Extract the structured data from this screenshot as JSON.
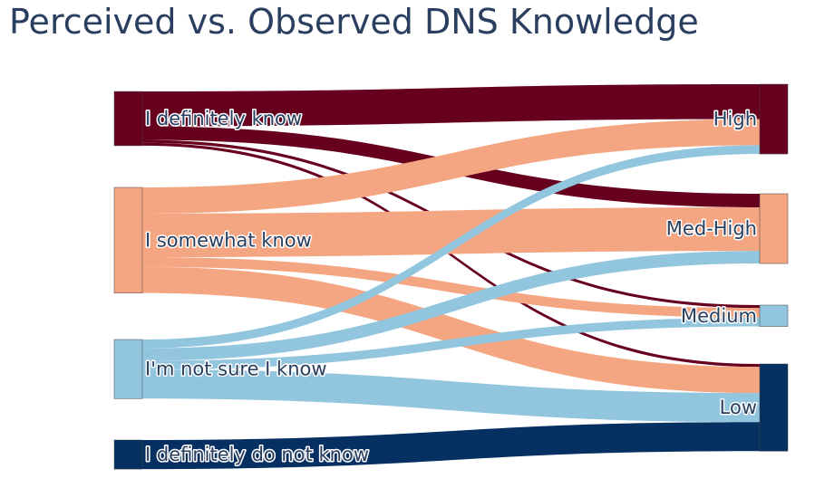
{
  "title": "Perceived vs. Observed DNS Knowledge",
  "chart_data": {
    "type": "sankey",
    "title": "Perceived vs. Observed DNS Knowledge",
    "nodes": [
      {
        "id": "s0",
        "label": "I definitely know",
        "color": "#67001f",
        "side": "source"
      },
      {
        "id": "s1",
        "label": "I somewhat know",
        "color": "#f4a582",
        "side": "source"
      },
      {
        "id": "s2",
        "label": "I'm not sure I know",
        "color": "#92c5de",
        "side": "source"
      },
      {
        "id": "s3",
        "label": "I definitely do not know",
        "color": "#053061",
        "side": "source"
      },
      {
        "id": "t0",
        "label": "High",
        "color": "#67001f",
        "side": "target"
      },
      {
        "id": "t1",
        "label": "Med-High",
        "color": "#f4a582",
        "side": "target"
      },
      {
        "id": "t2",
        "label": "Medium",
        "color": "#92c5de",
        "side": "target"
      },
      {
        "id": "t3",
        "label": "Low",
        "color": "#053061",
        "side": "target"
      }
    ],
    "links": [
      {
        "source": "s0",
        "target": "t0",
        "value": 36
      },
      {
        "source": "s0",
        "target": "t1",
        "value": 14
      },
      {
        "source": "s0",
        "target": "t2",
        "value": 3
      },
      {
        "source": "s0",
        "target": "t3",
        "value": 3
      },
      {
        "source": "s1",
        "target": "t0",
        "value": 27
      },
      {
        "source": "s1",
        "target": "t1",
        "value": 45
      },
      {
        "source": "s1",
        "target": "t2",
        "value": 10
      },
      {
        "source": "s1",
        "target": "t3",
        "value": 27
      },
      {
        "source": "s2",
        "target": "t0",
        "value": 9
      },
      {
        "source": "s2",
        "target": "t1",
        "value": 13
      },
      {
        "source": "s2",
        "target": "t2",
        "value": 9
      },
      {
        "source": "s2",
        "target": "t3",
        "value": 30
      },
      {
        "source": "s3",
        "target": "t3",
        "value": 30
      }
    ]
  }
}
